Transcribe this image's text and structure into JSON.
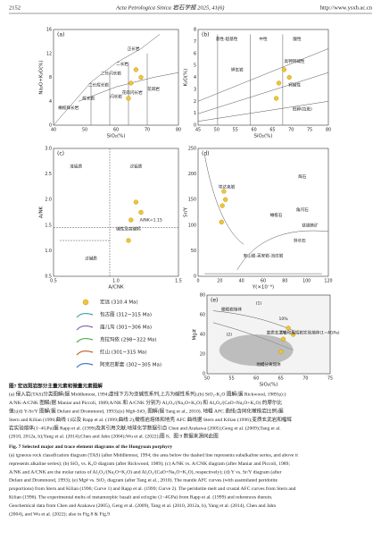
{
  "header": {
    "page": "2152",
    "journal": "Acta Petrologica Sinica 岩石学报 2025, 41(6)",
    "url": "http://www.ysxb.ac.cn"
  },
  "figure": {
    "panels": [
      {
        "id": "(a)",
        "xlabel": "SiO₂(%)",
        "ylabel": "Na₂O+K₂O(%)",
        "xticks": [
          "40",
          "50",
          "60",
          "70",
          "80"
        ],
        "yticks": [
          "0",
          "4",
          "8",
          "12",
          "16"
        ],
        "labels": [
          "橄榄辉长岩",
          "辉长岩",
          "二长辉长岩",
          "二长闪长岩",
          "闪长岩",
          "花岗闪长岩",
          "花岗岩",
          "二长岩",
          "正长岩"
        ]
      },
      {
        "id": "(b)",
        "xlabel": "SiO₂(%)",
        "ylabel": "K₂O(%)",
        "xticks": [
          "45",
          "50",
          "55",
          "60",
          "65",
          "70",
          "75",
          "80"
        ],
        "yticks": [
          "0",
          "1",
          "2",
          "3",
          "4",
          "5",
          "6",
          "7",
          "8"
        ],
        "labels": [
          "基性-超基性",
          "中性",
          "酸性",
          "钾玄岩",
          "高钾钙碱性",
          "钙碱性",
          "低钾(拉斑)"
        ]
      },
      {
        "id": "(c)",
        "xlabel": "A/CNK",
        "ylabel": "A/NK",
        "xticks": [
          "0.5",
          "1.0",
          "1.5"
        ],
        "yticks": [
          "0.5",
          "1.0",
          "1.5",
          "2.0",
          "2.5",
          "3.0"
        ],
        "labels": [
          "准铝质",
          "过铝质",
          "过碱质",
          "A/NK=1.15",
          "碱性及高碱钙"
        ]
      },
      {
        "id": "(d)",
        "xlabel": "Y(×10⁻⁶)",
        "ylabel": "Sr/Y",
        "xticks": [
          "0",
          "20",
          "40",
          "60",
          "80",
          "100",
          "120"
        ],
        "yticks": [
          "0",
          "50",
          "100",
          "150",
          "200",
          "250"
        ],
        "labels": [
          "辉石",
          "角闪石",
          "钛磁铁矿",
          "斜长石",
          "橄榄石",
          "埃达克岩",
          "安山岩-英安岩-流纹岩"
        ]
      },
      {
        "id": "(e)",
        "xlabel": "SiO₂(%)",
        "ylabel": "Mg#",
        "xticks": [
          "50",
          "55",
          "60",
          "65",
          "70",
          "75"
        ],
        "yticks": [
          "0",
          "20",
          "40",
          "60",
          "80"
        ],
        "labels": [
          "橄榄岩熔体",
          "变质玄武岩和榴辉岩实验熔体(1~4GPa)",
          "地幔分离熔体",
          "(1)",
          "(2)",
          "10%",
          "5%"
        ]
      }
    ],
    "legend": [
      {
        "name": "宏远 (310.4 Ma)",
        "color": "#f2c531"
      },
      {
        "name": "包古图 (312~315 Ma)",
        "color": "#3aa6a0"
      },
      {
        "name": "庙儿沟 (301~306 Ma)",
        "color": "#8e5ca8"
      },
      {
        "name": "克拉玛依 (298~322 Ma)",
        "color": "#5aa84a"
      },
      {
        "name": "红山 (301~315 Ma)",
        "color": "#b5652d"
      },
      {
        "name": "阿克巴斯套 (302~305 Ma)",
        "color": "#3b6fc4"
      }
    ]
  },
  "caption": {
    "zh": [
      "图7  宏远斑岩部分主量元素和微量元素图解",
      "(a) 侵入岩(TAS)分类图解(据 Middlemost, 1994;虚线下方为亚碱性系列,上方为碱性系列);(b) SiO₂-K₂O 图解(据 Rickwood, 1989);(c)",
      "A/NK-A/CNK 图解(据 Maniar and Piccoli, 1989;A/NK 和 A/CNK 分别为 Al₂O₃/(Na₂O+K₂O) 和 Al₂O₃/(CaO+Na₂O+K₂O) 的摩尔比",
      "值);(d) Y-Sr/Y 图解(据 Defant and Drummond, 1993);(e) Mg#-SiO₂ 图解(据 Tang et al., 2010). 地幔 AFC 曲线(含同化橄榄岩比例)据",
      "Stern and Kilian (1996;曲线 1)以及 Rapp et al. (1999;曲线 2),橄榄岩熔体和地壳 AFC 曲线据 Stern and Kilian (1996);变质玄武岩和榴辉",
      "岩实验熔体(1~4GPa)据 Rapp et al. (1999)及其引用文献;地球化学数据引自 Chen and Arakawa (2005);Geng et al. (2009);Tang et al.",
      "(2010, 2012a, b);Yang et al. (2014);Chen and Jahn (2004);Wu et al. (2022);图 8、图 9 数据来源同此图"
    ],
    "en": [
      "Fig. 7  Selected major and trace element diagrams of the Hongyuan porphyry",
      "(a) igneous rock classification diagram (TAS) (after Middlemost, 1994; the area below the dashed line represents subalkaline series, and above it",
      "represents alkaline series); (b) SiO₂ vs. K₂O diagram (after Rickwood, 1989); (c) A/NK vs. A/CNK diagram (after Maniar and Piccoli, 1989;",
      "A/NK and A/CNK are the molar ratios of Al₂O₃/(Na₂O+K₂O) and Al₂O₃/(CaO+Na₂O+K₂O), respectively); (d) Y vs. Sr/Y diagram (after",
      "Defant and Drummond, 1993); (e) Mg# vs. SiO₂ diagram (after Tang et al., 2010). The mantle AFC curves (with assimilated peridotite",
      "proportions) from Stern and Kilian (1996; Curve 1) and Rapp et al. (1999; Curve 2). The peridotite melt and crustal AFC curves from Stern and",
      "Kilian (1996). The experimental melts of metamorphic basalt and eclogite (1~4GPa) from Rapp et al. (1999) and references therein.",
      "Geochemical data from Chen and Arakawa (2005), Geng et al. (2009), Tang et al. (2010, 2012a, b), Yang et al. (2014), Chen and Jahn",
      "(2004), and Wu et al. (2022); also in Fig.8 & Fig.9"
    ]
  }
}
